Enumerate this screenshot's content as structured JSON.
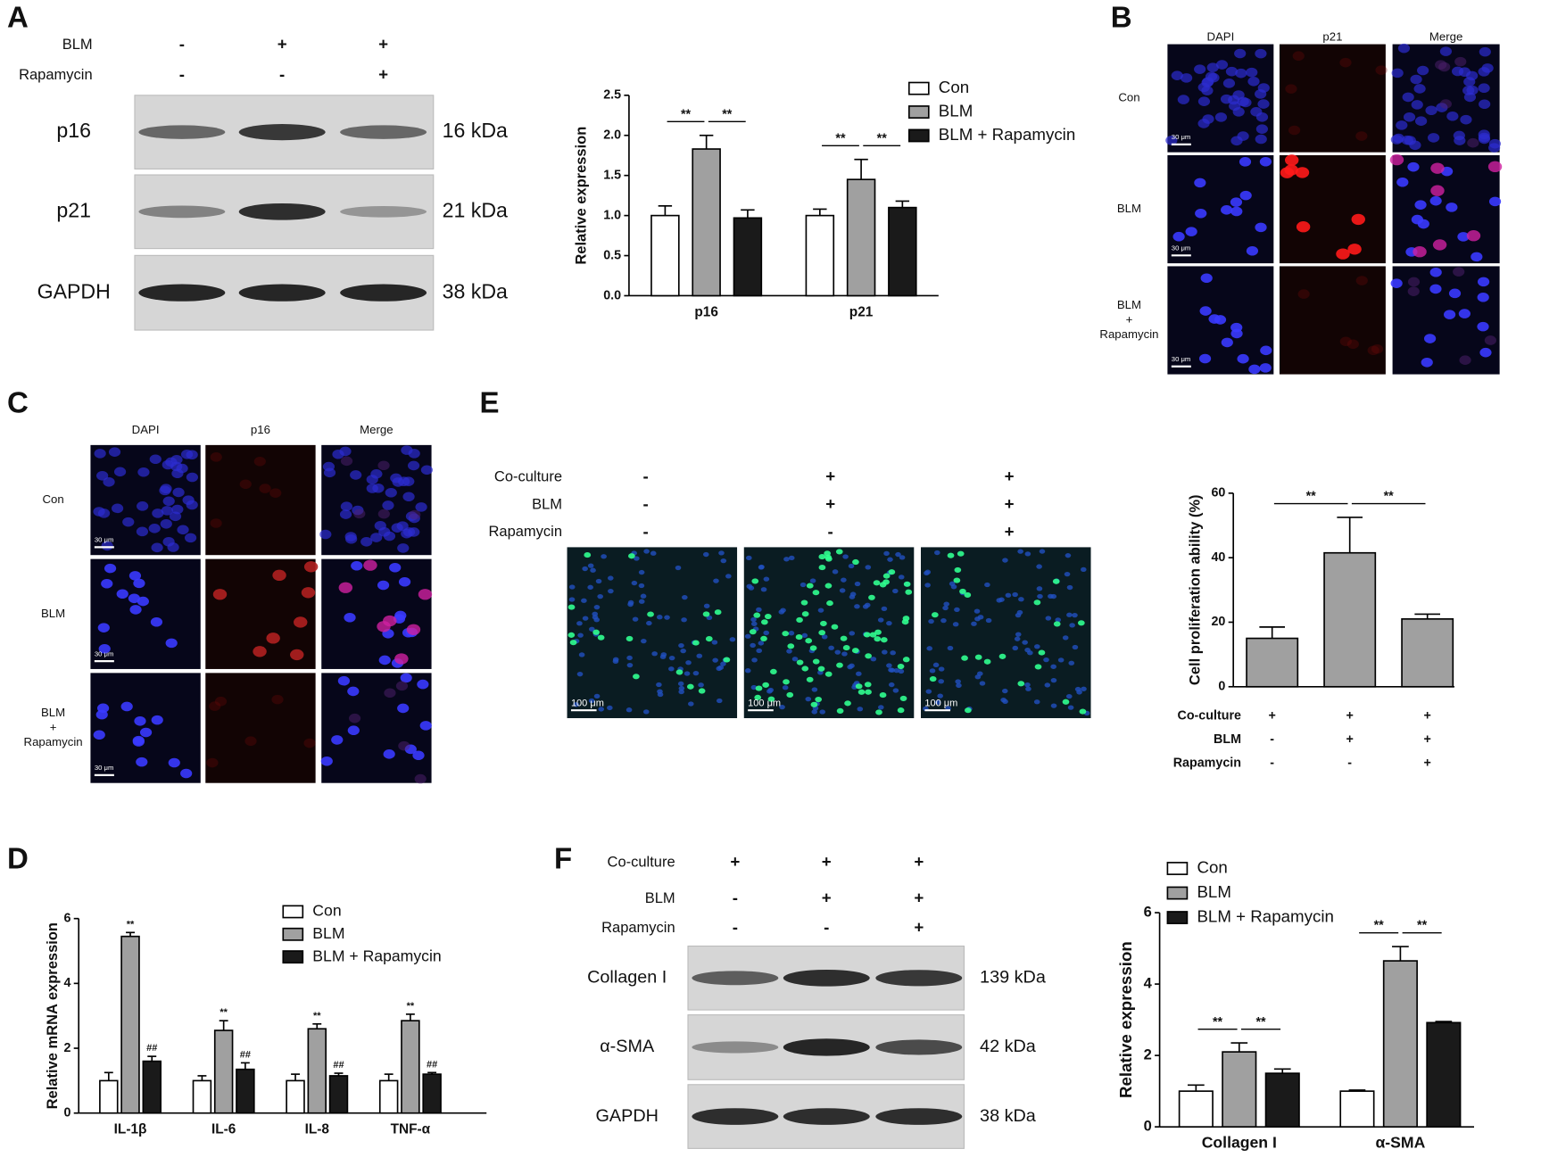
{
  "panels": {
    "A": {
      "letter": "A",
      "conditions": [
        {
          "name": "BLM",
          "signs": [
            "-",
            "+",
            "+"
          ]
        },
        {
          "name": "Rapamycin",
          "signs": [
            "-",
            "-",
            "+"
          ]
        }
      ],
      "bands": [
        {
          "name": "p16",
          "size": "16 kDa"
        },
        {
          "name": "p21",
          "size": "21 kDa"
        },
        {
          "name": "GAPDH",
          "size": "38 kDa"
        }
      ]
    },
    "B": {
      "letter": "B",
      "columns": [
        "DAPI",
        "p21",
        "Merge"
      ],
      "rows": [
        [
          "Con"
        ],
        [
          "BLM"
        ],
        [
          "BLM",
          "+",
          "Rapamycin"
        ]
      ],
      "scale_bar": "30 μm"
    },
    "C": {
      "letter": "C",
      "columns": [
        "DAPI",
        "p16",
        "Merge"
      ],
      "rows": [
        [
          "Con"
        ],
        [
          "BLM"
        ],
        [
          "BLM",
          "+",
          "Rapamycin"
        ]
      ],
      "scale_bar": "30 μm"
    },
    "D": {
      "letter": "D"
    },
    "E": {
      "letter": "E",
      "conditions": [
        {
          "name": "Co-culture",
          "signs": [
            "-",
            "+",
            "+"
          ]
        },
        {
          "name": "BLM",
          "signs": [
            "-",
            "+",
            "+"
          ]
        },
        {
          "name": "Rapamycin",
          "signs": [
            "-",
            "-",
            "+"
          ]
        }
      ],
      "scale_bar": "100 μm"
    },
    "F": {
      "letter": "F",
      "conditions": [
        {
          "name": "Co-culture",
          "signs": [
            "+",
            "+",
            "+"
          ]
        },
        {
          "name": "BLM",
          "signs": [
            "-",
            "+",
            "+"
          ]
        },
        {
          "name": "Rapamycin",
          "signs": [
            "-",
            "-",
            "+"
          ]
        }
      ],
      "bands": [
        {
          "name": "Collagen I",
          "size": "139 kDa"
        },
        {
          "name": "α-SMA",
          "size": "42 kDa"
        },
        {
          "name": "GAPDH",
          "size": "38 kDa"
        }
      ]
    }
  },
  "chart_data": [
    {
      "type": "bar",
      "y_label": "Relative expression",
      "categories": [
        "p16",
        "p21"
      ],
      "series": [
        {
          "name": "Con",
          "color": "#ffffff",
          "values": [
            1.0,
            1.0
          ],
          "errors": [
            0.12,
            0.08
          ]
        },
        {
          "name": "BLM",
          "color": "#a0a0a0",
          "values": [
            1.83,
            1.45
          ],
          "errors": [
            0.17,
            0.25
          ]
        },
        {
          "name": "BLM + Rapamycin",
          "color": "#1a1a1a",
          "values": [
            0.97,
            1.1
          ],
          "errors": [
            0.1,
            0.08
          ]
        }
      ],
      "ylim": [
        0,
        2.5
      ],
      "yticks": [
        {
          "value": 0,
          "label": "0.0"
        },
        {
          "value": 0.5,
          "label": "0.5"
        },
        {
          "value": 1,
          "label": "1.0"
        },
        {
          "value": 1.5,
          "label": "1.5"
        },
        {
          "value": 2,
          "label": "2.0"
        },
        {
          "value": 2.5,
          "label": "2.5"
        }
      ],
      "brackets": [
        {
          "category": "p16",
          "between": [
            "Con",
            "BLM"
          ],
          "label": "**"
        },
        {
          "category": "p16",
          "between": [
            "BLM",
            "BLM + Rapamycin"
          ],
          "label": "**"
        },
        {
          "category": "p21",
          "between": [
            "Con",
            "BLM"
          ],
          "label": "**"
        },
        {
          "category": "p21",
          "between": [
            "BLM",
            "BLM + Rapamycin"
          ],
          "label": "**"
        }
      ]
    },
    {
      "type": "bar",
      "y_label": "Relative mRNA expression",
      "categories": [
        "IL-1β",
        "IL-6",
        "IL-8",
        "TNF-α"
      ],
      "series": [
        {
          "name": "Con",
          "color": "#ffffff",
          "values": [
            1,
            1,
            1,
            1
          ],
          "errors": [
            0.25,
            0.15,
            0.2,
            0.2
          ]
        },
        {
          "name": "BLM",
          "color": "#a0a0a0",
          "values": [
            5.45,
            2.55,
            2.6,
            2.85
          ],
          "errors": [
            0.12,
            0.3,
            0.15,
            0.2
          ],
          "markers": [
            "**",
            "**",
            "**",
            "**"
          ]
        },
        {
          "name": "BLM + Rapamycin",
          "color": "#1a1a1a",
          "values": [
            1.6,
            1.35,
            1.15,
            1.2
          ],
          "errors": [
            0.15,
            0.2,
            0.08,
            0.05
          ],
          "markers": [
            "##",
            "##",
            "##",
            "##"
          ]
        }
      ],
      "ylim": [
        0,
        6
      ],
      "yticks": [
        0,
        2,
        4,
        6
      ]
    },
    {
      "type": "bar",
      "y_label": "Cell proliferation ability (%)",
      "categories": [
        null,
        null,
        null
      ],
      "color": "#a0a0a0",
      "values": [
        15,
        41.5,
        21
      ],
      "errors": [
        3.5,
        11,
        1.5
      ],
      "ylim": [
        0,
        60
      ],
      "yticks": [
        0,
        20,
        40,
        60
      ],
      "brackets": [
        {
          "between": [
            0,
            1
          ],
          "label": "**"
        },
        {
          "between": [
            1,
            2
          ],
          "label": "**"
        }
      ],
      "conditions": [
        {
          "name": "Co-culture",
          "signs": [
            "+",
            "+",
            "+"
          ]
        },
        {
          "name": "BLM",
          "signs": [
            "-",
            "+",
            "+"
          ]
        },
        {
          "name": "Rapamycin",
          "signs": [
            "-",
            "-",
            "+"
          ]
        }
      ]
    },
    {
      "type": "bar",
      "y_label": "Relative expression",
      "categories": [
        "Collagen I",
        "α-SMA"
      ],
      "series": [
        {
          "name": "Con",
          "color": "#ffffff",
          "values": [
            1.0,
            1.0
          ],
          "errors": [
            0.17,
            0.03
          ]
        },
        {
          "name": "BLM",
          "color": "#a0a0a0",
          "values": [
            2.1,
            4.65
          ],
          "errors": [
            0.25,
            0.4
          ]
        },
        {
          "name": "BLM + Rapamycin",
          "color": "#1a1a1a",
          "values": [
            1.5,
            2.92
          ],
          "errors": [
            0.12,
            0.03
          ]
        }
      ],
      "ylim": [
        0,
        6
      ],
      "yticks": [
        0,
        2,
        4,
        6
      ],
      "brackets": [
        {
          "category": "Collagen I",
          "between": [
            "Con",
            "BLM"
          ],
          "label": "**"
        },
        {
          "category": "Collagen I",
          "between": [
            "BLM",
            "BLM + Rapamycin"
          ],
          "label": "**"
        },
        {
          "category": "α-SMA",
          "between": [
            "Con",
            "BLM"
          ],
          "label": "**"
        },
        {
          "category": "α-SMA",
          "between": [
            "BLM",
            "BLM + Rapamycin"
          ],
          "label": "**"
        }
      ]
    }
  ]
}
